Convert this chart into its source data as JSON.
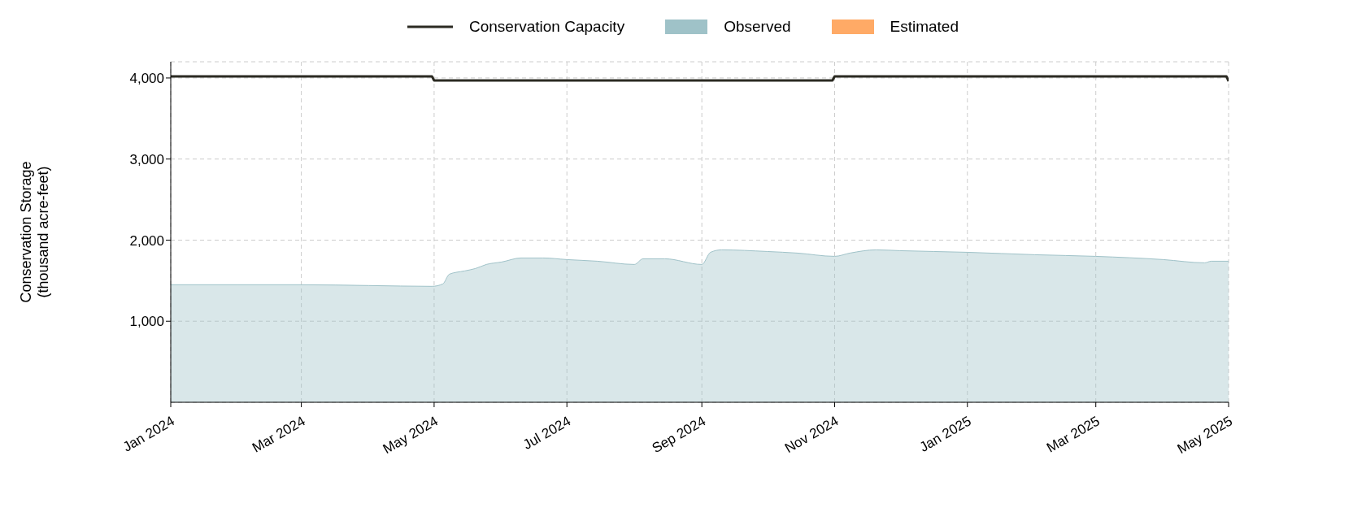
{
  "chart_data": {
    "type": "area",
    "ylabel": "Conservation Storage\n(thousand acre-feet)",
    "ylim": [
      0,
      4200
    ],
    "yticks": [
      {
        "value": 1000,
        "label": "1,000"
      },
      {
        "value": 2000,
        "label": "2,000"
      },
      {
        "value": 3000,
        "label": "3,000"
      },
      {
        "value": 4000,
        "label": "4,000"
      }
    ],
    "xlim": [
      "2024-01-01",
      "2025-05-01"
    ],
    "xticks": [
      {
        "value": "2024-01-01",
        "label": "Jan 2024"
      },
      {
        "value": "2024-03-01",
        "label": "Mar 2024"
      },
      {
        "value": "2024-05-01",
        "label": "May 2024"
      },
      {
        "value": "2024-07-01",
        "label": "Jul 2024"
      },
      {
        "value": "2024-09-01",
        "label": "Sep 2024"
      },
      {
        "value": "2024-11-01",
        "label": "Nov 2024"
      },
      {
        "value": "2025-01-01",
        "label": "Jan 2025"
      },
      {
        "value": "2025-03-01",
        "label": "Mar 2025"
      },
      {
        "value": "2025-05-01",
        "label": "May 2025"
      }
    ],
    "grid": true,
    "legend": "top",
    "series": [
      {
        "name": "Conservation Capacity",
        "type": "line",
        "color": "#2b2a22",
        "x": [
          "2024-01-01",
          "2024-04-30",
          "2024-05-01",
          "2024-10-31",
          "2024-11-01",
          "2025-04-30",
          "2025-05-01"
        ],
        "values": [
          4020,
          4020,
          3970,
          3970,
          4020,
          4020,
          3960
        ]
      },
      {
        "name": "Observed",
        "color": "#9fc2c8",
        "x": [
          "2024-01-01",
          "2024-02-01",
          "2024-03-01",
          "2024-04-01",
          "2024-04-30",
          "2024-05-05",
          "2024-05-08",
          "2024-05-15",
          "2024-05-20",
          "2024-05-25",
          "2024-06-01",
          "2024-06-10",
          "2024-06-20",
          "2024-07-01",
          "2024-07-15",
          "2024-08-01",
          "2024-08-05",
          "2024-08-15",
          "2024-09-01",
          "2024-09-05",
          "2024-09-10",
          "2024-10-01",
          "2024-10-15",
          "2024-11-01",
          "2024-11-08",
          "2024-11-20",
          "2024-12-01",
          "2025-01-01",
          "2025-02-01",
          "2025-03-01",
          "2025-04-01",
          "2025-04-20",
          "2025-04-23",
          "2025-05-01"
        ],
        "values": [
          1450,
          1450,
          1450,
          1440,
          1430,
          1460,
          1580,
          1620,
          1650,
          1700,
          1730,
          1780,
          1780,
          1760,
          1740,
          1700,
          1770,
          1770,
          1700,
          1850,
          1880,
          1860,
          1840,
          1800,
          1840,
          1880,
          1870,
          1850,
          1820,
          1800,
          1760,
          1720,
          1740,
          1740
        ]
      },
      {
        "name": "Estimated",
        "color": "#ffaa66"
      }
    ]
  }
}
